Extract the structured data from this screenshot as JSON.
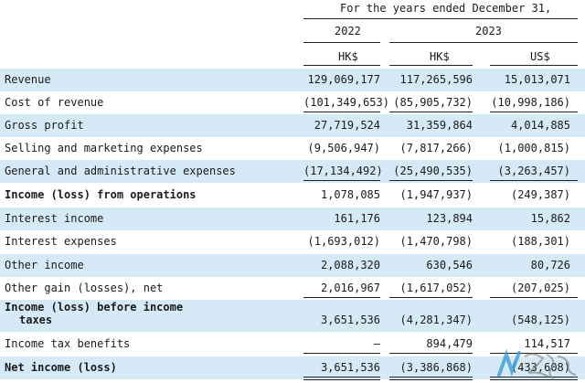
{
  "header": {
    "period_title": "For the  years ended December  31,",
    "year_2022": "2022",
    "year_2023": "2023",
    "currency_col1": "HK$",
    "currency_col2": "HK$",
    "currency_col3": "US$"
  },
  "rows": [
    {
      "label": "Revenue",
      "v1": "129,069,177",
      "v2": "117,265,596",
      "v3": "15,013,071",
      "bold": false,
      "shade": true
    },
    {
      "label": "Cost of revenue",
      "v1": "(101,349,653)",
      "v2": "(85,905,732)",
      "v3": "(10,998,186)",
      "bold": false,
      "shade": false
    },
    {
      "label": "Gross profit",
      "v1": "27,719,524",
      "v2": "31,359,864",
      "v3": "4,014,885",
      "bold": false,
      "shade": true
    },
    {
      "label": "Selling and marketing expenses",
      "v1": "(9,506,947)",
      "v2": "(7,817,266)",
      "v3": "(1,000,815)",
      "bold": false,
      "shade": false
    },
    {
      "label": "General and administrative expenses",
      "v1": "(17,134,492)",
      "v2": "(25,490,535)",
      "v3": "(3,263,457)",
      "bold": false,
      "shade": true
    },
    {
      "label": "Income (loss) from operations",
      "v1": "1,078,085",
      "v2": "(1,947,937)",
      "v3": "(249,387)",
      "bold": true,
      "shade": false
    },
    {
      "label": "Interest income",
      "v1": "161,176",
      "v2": "123,894",
      "v3": "15,862",
      "bold": false,
      "shade": true
    },
    {
      "label": "Interest expenses",
      "v1": "(1,693,012)",
      "v2": "(1,470,798)",
      "v3": "(188,301)",
      "bold": false,
      "shade": false
    },
    {
      "label": "Other income",
      "v1": "2,088,320",
      "v2": "630,546",
      "v3": "80,726",
      "bold": false,
      "shade": true
    },
    {
      "label": "Other gain (losses), net",
      "v1": "2,016,967",
      "v2": "(1,617,052)",
      "v3": "(207,025)",
      "bold": false,
      "shade": false
    },
    {
      "label": "Income (loss) before income",
      "label2": "taxes",
      "v1": "3,651,536",
      "v2": "(4,281,347)",
      "v3": "(548,125)",
      "bold": true,
      "shade": true
    },
    {
      "label": "Income tax benefits",
      "v1": "—",
      "v2": "894,479",
      "v3": "114,517",
      "bold": false,
      "shade": false
    },
    {
      "label": "Net income (loss)",
      "v1": "3,651,536",
      "v2": "(3,386,868)",
      "v3": "(433,608)",
      "bold": true,
      "shade": true
    }
  ],
  "colors": {
    "row_shade": "#d6e9f7",
    "text": "#1a1a1a"
  }
}
